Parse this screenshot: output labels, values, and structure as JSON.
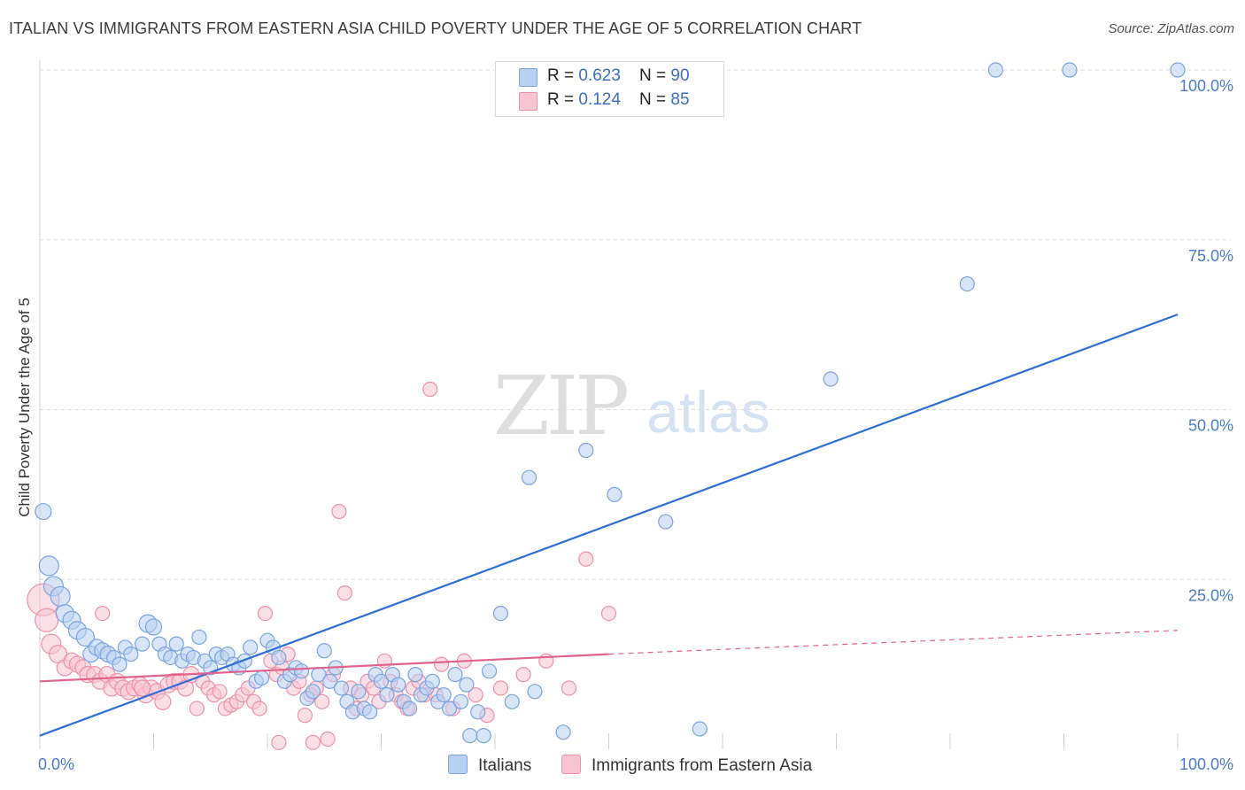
{
  "title": "ITALIAN VS IMMIGRANTS FROM EASTERN ASIA CHILD POVERTY UNDER THE AGE OF 5 CORRELATION CHART",
  "source": "Source: ZipAtlas.com",
  "watermark": {
    "zip": "ZIP",
    "atlas": "atlas"
  },
  "colors": {
    "blue_fill": "#b8d0f2",
    "blue_stroke": "#7aa4de",
    "blue_line": "#2f6fd6",
    "pink_fill": "#f7c4d2",
    "pink_stroke": "#ee90ab",
    "pink_line": "#e0638e",
    "tick_text": "#4a7cc9",
    "grid": "#d9d9d9"
  },
  "legend_top": {
    "rows": [
      {
        "r_label": "R = ",
        "r_value": "0.623",
        "n_label": "N = ",
        "n_value": "90"
      },
      {
        "r_label": "R = ",
        "r_value": "0.124",
        "n_label": "N = ",
        "n_value": "85"
      }
    ]
  },
  "legend_bottom": {
    "series1": "Italians",
    "series2": "Immigrants from Eastern Asia"
  },
  "chart_data": {
    "type": "scatter",
    "title": "ITALIAN VS IMMIGRANTS FROM EASTERN ASIA CHILD POVERTY UNDER THE AGE OF 5 CORRELATION CHART",
    "xlabel": "",
    "ylabel": "Child Poverty Under the Age of 5",
    "xlim": [
      0,
      100
    ],
    "ylim": [
      0,
      100
    ],
    "x_tick_labels": [
      "0.0%",
      "100.0%"
    ],
    "y_tick_labels": [
      "25.0%",
      "50.0%",
      "75.0%",
      "100.0%"
    ],
    "y_ticks": [
      25,
      50,
      75,
      100
    ],
    "grid": true,
    "legend": "top-center",
    "series": [
      {
        "name": "Italians",
        "R": 0.623,
        "N": 90,
        "trend": {
          "x": [
            0,
            100
          ],
          "y": [
            2,
            64
          ],
          "style": "solid"
        },
        "points": [
          [
            0.3,
            35,
            9
          ],
          [
            0.8,
            27,
            11
          ],
          [
            1.2,
            24,
            11
          ],
          [
            1.8,
            22.5,
            11
          ],
          [
            2.2,
            20,
            10
          ],
          [
            2.8,
            19,
            10
          ],
          [
            3.3,
            17.5,
            10
          ],
          [
            4,
            16.5,
            10
          ],
          [
            4.5,
            14,
            9
          ],
          [
            5,
            15,
            9
          ],
          [
            5.5,
            14.5,
            9
          ],
          [
            6,
            14,
            9
          ],
          [
            6.5,
            13.5,
            8
          ],
          [
            7,
            12.5,
            8
          ],
          [
            7.5,
            15,
            8
          ],
          [
            8,
            14,
            8
          ],
          [
            9,
            15.5,
            8
          ],
          [
            9.5,
            18.5,
            10
          ],
          [
            10,
            18,
            9
          ],
          [
            10.5,
            15.5,
            8
          ],
          [
            11,
            14,
            8
          ],
          [
            11.5,
            13.5,
            8
          ],
          [
            12,
            15.5,
            8
          ],
          [
            12.5,
            13,
            8
          ],
          [
            13,
            14,
            8
          ],
          [
            13.5,
            13.5,
            8
          ],
          [
            14,
            16.5,
            8
          ],
          [
            14.5,
            13,
            8
          ],
          [
            15,
            12,
            8
          ],
          [
            15.5,
            14,
            8
          ],
          [
            16,
            13.5,
            8
          ],
          [
            16.5,
            14,
            8
          ],
          [
            17,
            12.5,
            8
          ],
          [
            17.5,
            12,
            8
          ],
          [
            18,
            13,
            8
          ],
          [
            18.5,
            15,
            8
          ],
          [
            19,
            10,
            8
          ],
          [
            19.5,
            10.5,
            8
          ],
          [
            20,
            16,
            8
          ],
          [
            20.5,
            15,
            8
          ],
          [
            21,
            13.5,
            8
          ],
          [
            21.5,
            10,
            8
          ],
          [
            22,
            11,
            8
          ],
          [
            22.5,
            12,
            8
          ],
          [
            23,
            11.5,
            8
          ],
          [
            23.5,
            7.5,
            8
          ],
          [
            24,
            8.5,
            8
          ],
          [
            24.5,
            11,
            8
          ],
          [
            25,
            14.5,
            8
          ],
          [
            25.5,
            10,
            8
          ],
          [
            26,
            12,
            8
          ],
          [
            26.5,
            9,
            8
          ],
          [
            27,
            7,
            8
          ],
          [
            27.5,
            5.5,
            8
          ],
          [
            28,
            8.5,
            8
          ],
          [
            28.5,
            6,
            8
          ],
          [
            29,
            5.5,
            8
          ],
          [
            29.5,
            11,
            8
          ],
          [
            30,
            10,
            8
          ],
          [
            30.5,
            8,
            8
          ],
          [
            31,
            11,
            8
          ],
          [
            31.5,
            9.5,
            8
          ],
          [
            32,
            7,
            8
          ],
          [
            32.5,
            6,
            8
          ],
          [
            33,
            11,
            8
          ],
          [
            33.5,
            8,
            8
          ],
          [
            34,
            9,
            8
          ],
          [
            34.5,
            10,
            8
          ],
          [
            35,
            7,
            8
          ],
          [
            35.5,
            8,
            8
          ],
          [
            36,
            6,
            8
          ],
          [
            36.5,
            11,
            8
          ],
          [
            37,
            7,
            8
          ],
          [
            37.5,
            9.5,
            8
          ],
          [
            37.8,
            2,
            8
          ],
          [
            38.5,
            5.5,
            8
          ],
          [
            39,
            2,
            8
          ],
          [
            39.5,
            11.5,
            8
          ],
          [
            40.5,
            20,
            8
          ],
          [
            41.5,
            7,
            8
          ],
          [
            43,
            40,
            8
          ],
          [
            43.5,
            8.5,
            8
          ],
          [
            46,
            2.5,
            8
          ],
          [
            48,
            44,
            8
          ],
          [
            50.5,
            37.5,
            8
          ],
          [
            55,
            33.5,
            8
          ],
          [
            58,
            3,
            8
          ],
          [
            69.5,
            54.5,
            8
          ],
          [
            81.5,
            68.5,
            8
          ],
          [
            84,
            100,
            8
          ],
          [
            90.5,
            100,
            8
          ],
          [
            100,
            100,
            8
          ]
        ]
      },
      {
        "name": "Immigrants from Eastern Asia",
        "R": 0.124,
        "N": 85,
        "trend": {
          "x": [
            0,
            50,
            100
          ],
          "y": [
            10,
            14,
            17.5
          ],
          "style": "solid-then-dashed"
        },
        "points": [
          [
            0.3,
            22,
            18
          ],
          [
            0.6,
            19,
            13
          ],
          [
            1,
            15.5,
            11
          ],
          [
            1.6,
            14,
            10
          ],
          [
            2.2,
            12,
            9
          ],
          [
            2.8,
            13,
            9
          ],
          [
            3.3,
            12.5,
            9
          ],
          [
            3.8,
            12,
            9
          ],
          [
            4.2,
            11,
            9
          ],
          [
            4.8,
            11,
            9
          ],
          [
            5.3,
            10,
            9
          ],
          [
            5.5,
            20,
            8
          ],
          [
            5.9,
            11,
            9
          ],
          [
            6.3,
            9,
            9
          ],
          [
            6.8,
            10,
            9
          ],
          [
            7.3,
            9,
            9
          ],
          [
            7.8,
            8.5,
            9
          ],
          [
            8.3,
            9,
            9
          ],
          [
            8.8,
            9.5,
            9
          ],
          [
            9.3,
            8,
            9
          ],
          [
            9.8,
            9,
            9
          ],
          [
            10.3,
            8.5,
            9
          ],
          [
            10.8,
            7,
            9
          ],
          [
            11.3,
            9.5,
            9
          ],
          [
            11.8,
            10,
            9
          ],
          [
            12.3,
            10,
            9
          ],
          [
            12.8,
            9,
            9
          ],
          [
            13.3,
            11,
            9
          ],
          [
            13.8,
            6,
            8
          ],
          [
            14.3,
            10,
            8
          ],
          [
            14.8,
            9,
            8
          ],
          [
            15.3,
            8,
            8
          ],
          [
            15.8,
            8.5,
            8
          ],
          [
            16.3,
            6,
            8
          ],
          [
            16.8,
            6.5,
            8
          ],
          [
            17.3,
            7,
            8
          ],
          [
            17.8,
            8,
            8
          ],
          [
            18.3,
            9,
            8
          ],
          [
            18.8,
            7,
            8
          ],
          [
            19.3,
            6,
            8
          ],
          [
            19.8,
            20,
            8
          ],
          [
            20.3,
            13,
            8
          ],
          [
            20.8,
            11,
            8
          ],
          [
            21.3,
            12,
            8
          ],
          [
            21.8,
            14,
            8
          ],
          [
            22.3,
            9,
            8
          ],
          [
            22.8,
            10,
            8
          ],
          [
            23.3,
            5,
            8
          ],
          [
            23.8,
            8,
            8
          ],
          [
            24.3,
            9,
            8
          ],
          [
            24.8,
            7,
            8
          ],
          [
            25.3,
            1.5,
            8
          ],
          [
            25.8,
            11,
            8
          ],
          [
            26.3,
            35,
            8
          ],
          [
            26.8,
            23,
            8
          ],
          [
            27.3,
            9,
            8
          ],
          [
            27.8,
            6,
            8
          ],
          [
            28.3,
            8,
            8
          ],
          [
            28.8,
            10,
            8
          ],
          [
            29.3,
            9,
            8
          ],
          [
            29.8,
            7,
            8
          ],
          [
            30.3,
            13,
            8
          ],
          [
            30.8,
            10,
            8
          ],
          [
            31.3,
            8,
            8
          ],
          [
            31.8,
            7,
            8
          ],
          [
            32.3,
            6,
            8
          ],
          [
            32.8,
            9,
            8
          ],
          [
            33.3,
            10,
            8
          ],
          [
            33.8,
            8,
            8
          ],
          [
            34.3,
            53,
            8
          ],
          [
            34.8,
            8,
            8
          ],
          [
            35.3,
            12.5,
            8
          ],
          [
            36.3,
            6,
            8
          ],
          [
            37.3,
            13,
            8
          ],
          [
            38.3,
            8,
            8
          ],
          [
            39.3,
            5,
            8
          ],
          [
            40.5,
            9,
            8
          ],
          [
            42.5,
            11,
            8
          ],
          [
            44.5,
            13,
            8
          ],
          [
            48,
            28,
            8
          ],
          [
            50,
            20,
            8
          ],
          [
            21,
            1,
            8
          ],
          [
            24,
            1,
            8
          ],
          [
            46.5,
            9,
            8
          ],
          [
            9,
            9,
            9
          ]
        ]
      }
    ]
  }
}
